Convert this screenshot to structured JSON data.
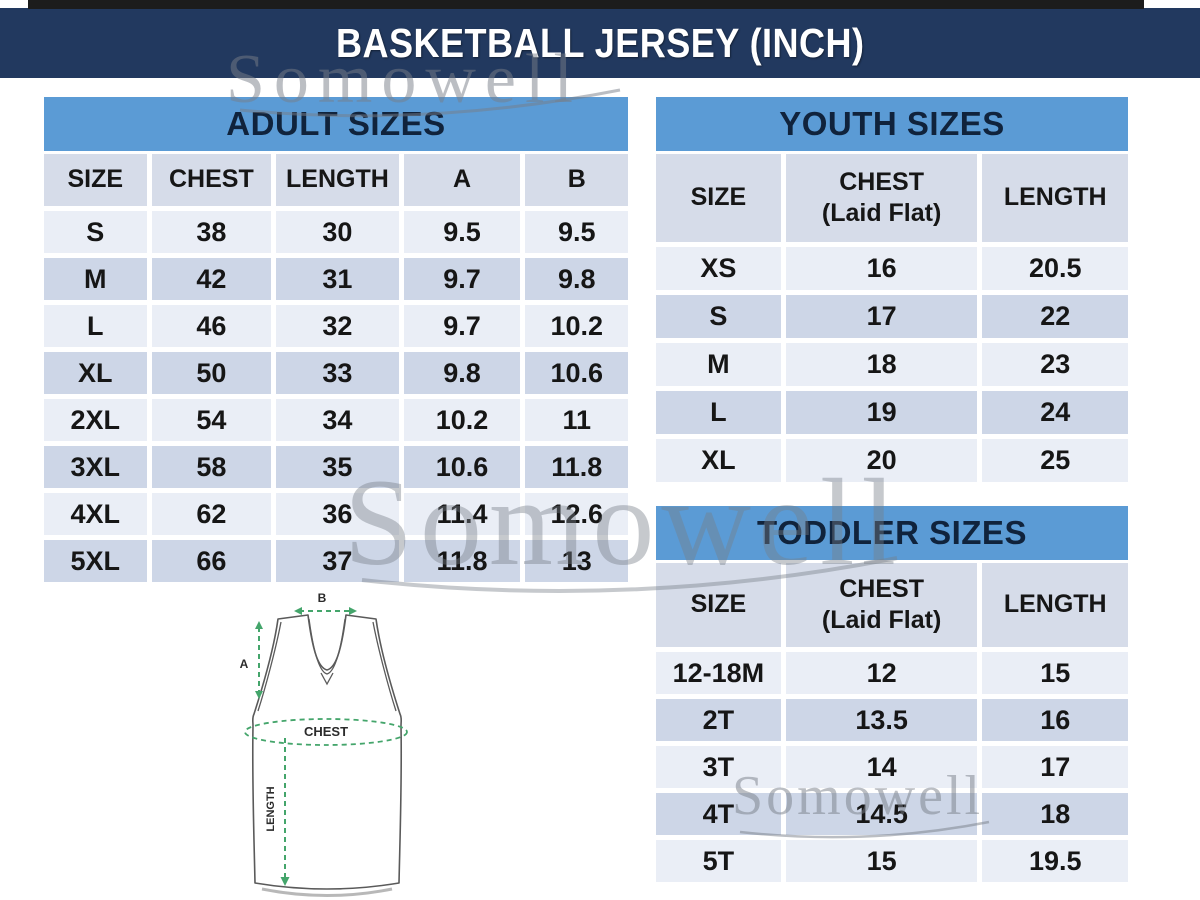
{
  "banner": {
    "title": "BASKETBALL JERSEY (INCH)"
  },
  "watermark": {
    "text": "Somowell"
  },
  "tables": {
    "adult": {
      "title": "ADULT SIZES",
      "columns": [
        {
          "label": "SIZE"
        },
        {
          "label": "CHEST"
        },
        {
          "label": "LENGTH"
        },
        {
          "label": "A"
        },
        {
          "label": "B"
        }
      ],
      "rows": [
        [
          "S",
          "38",
          "30",
          "9.5",
          "9.5"
        ],
        [
          "M",
          "42",
          "31",
          "9.7",
          "9.8"
        ],
        [
          "L",
          "46",
          "32",
          "9.7",
          "10.2"
        ],
        [
          "XL",
          "50",
          "33",
          "9.8",
          "10.6"
        ],
        [
          "2XL",
          "54",
          "34",
          "10.2",
          "11"
        ],
        [
          "3XL",
          "58",
          "35",
          "10.6",
          "11.8"
        ],
        [
          "4XL",
          "62",
          "36",
          "11.4",
          "12.6"
        ],
        [
          "5XL",
          "66",
          "37",
          "11.8",
          "13"
        ]
      ]
    },
    "youth": {
      "title": "YOUTH SIZES",
      "columns": [
        {
          "label": "SIZE"
        },
        {
          "label": "CHEST",
          "sublabel": "(Laid Flat)"
        },
        {
          "label": "LENGTH"
        }
      ],
      "rows": [
        [
          "XS",
          "16",
          "20.5"
        ],
        [
          "S",
          "17",
          "22"
        ],
        [
          "M",
          "18",
          "23"
        ],
        [
          "L",
          "19",
          "24"
        ],
        [
          "XL",
          "20",
          "25"
        ]
      ]
    },
    "toddler": {
      "title": "TODDLER SIZES",
      "columns": [
        {
          "label": "SIZE"
        },
        {
          "label": "CHEST",
          "sublabel": "(Laid Flat)"
        },
        {
          "label": "LENGTH"
        }
      ],
      "rows": [
        [
          "12-18M",
          "12",
          "15"
        ],
        [
          "2T",
          "13.5",
          "16"
        ],
        [
          "3T",
          "14",
          "17"
        ],
        [
          "4T",
          "14.5",
          "18"
        ],
        [
          "5T",
          "15",
          "19.5"
        ]
      ]
    }
  },
  "diagram": {
    "label_a": "A",
    "label_b": "B",
    "label_chest": "CHEST",
    "label_length": "LENGTH"
  },
  "colors": {
    "banner_navy": "#22395F",
    "table_header_blue": "#5B9BD5",
    "column_header": "#D6DCE9",
    "row_light": "#EAEEF6",
    "row_dark": "#CDD6E7",
    "measure_green": "#44A56B",
    "watermark_gray": "#9AA0A8"
  }
}
